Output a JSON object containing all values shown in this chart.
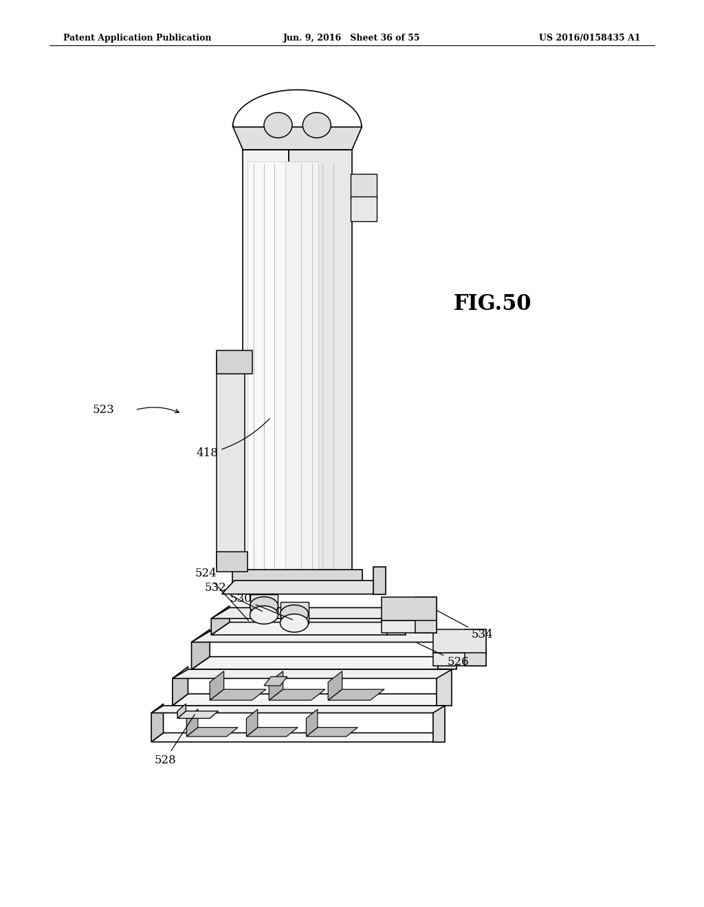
{
  "page_header_left": "Patent Application Publication",
  "page_header_center": "Jun. 9, 2016   Sheet 36 of 55",
  "page_header_right": "US 2016/0158435 A1",
  "figure_label": "FIG.50",
  "bg_color": "#ffffff",
  "line_color": "#000000",
  "line_width": 1.2
}
